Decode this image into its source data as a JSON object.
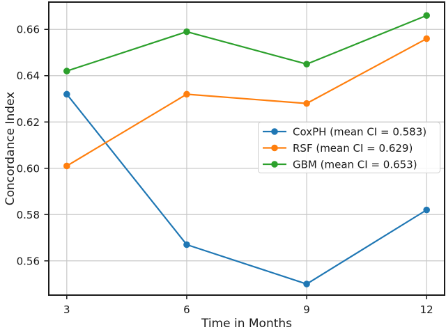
{
  "chart_data": {
    "type": "line",
    "title": "",
    "xlabel": "Time in Months",
    "ylabel": "Concordance Index",
    "x": [
      3,
      6,
      9,
      12
    ],
    "xtick_labels": [
      "3",
      "6",
      "9",
      "12"
    ],
    "yticks": [
      0.56,
      0.58,
      0.6,
      0.62,
      0.64,
      0.66
    ],
    "ytick_labels": [
      "0.56",
      "0.58",
      "0.60",
      "0.62",
      "0.64",
      "0.66"
    ],
    "xlim": [
      2.55,
      12.45
    ],
    "ylim": [
      0.5452,
      0.6718
    ],
    "grid": true,
    "legend_position": "center right",
    "series": [
      {
        "key": "coxph",
        "name": "CoxPH (mean CI = 0.583)",
        "color": "#1f77b4",
        "values": [
          0.632,
          0.567,
          0.55,
          0.582
        ]
      },
      {
        "key": "rsf",
        "name": "RSF (mean CI = 0.629)",
        "color": "#ff7f0e",
        "values": [
          0.601,
          0.632,
          0.628,
          0.656
        ]
      },
      {
        "key": "gbm",
        "name": "GBM (mean CI = 0.653)",
        "color": "#2ca02c",
        "values": [
          0.642,
          0.659,
          0.645,
          0.666
        ]
      }
    ],
    "style": {
      "grid_color": "#c9c9c9",
      "spine_color": "#1a1a1a",
      "legend_border_color": "#cccccc",
      "legend_bg_color": "#ffffff"
    }
  }
}
